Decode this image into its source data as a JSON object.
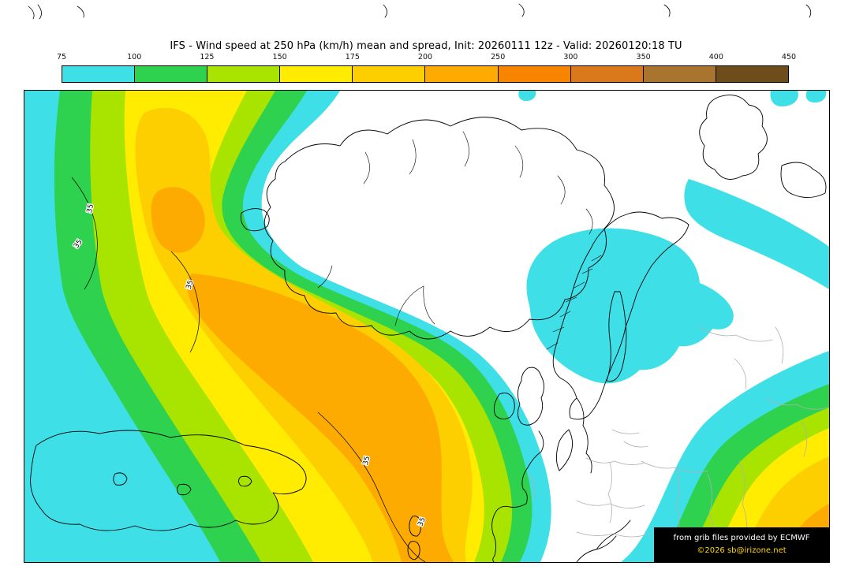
{
  "header": {
    "title": "IFS - Wind speed at 250 hPa (km/h) mean and spread, Init: 20260111 12z - Valid: 20260120:18 TU"
  },
  "colorbar": {
    "tick_labels": [
      "75",
      "100",
      "125",
      "150",
      "175",
      "200",
      "250",
      "300",
      "350",
      "400",
      "450"
    ],
    "segment_colors": [
      "#3fdfe8",
      "#2ed24e",
      "#a8e400",
      "#ffec00",
      "#fdcf00",
      "#fdab00",
      "#f88400",
      "#d9791c",
      "#a8742e",
      "#6f4d1b"
    ]
  },
  "map": {
    "contour_label": "35",
    "attribution": {
      "line1": "from grib files provided by ECMWF",
      "line2": "©2026 sb@irizone.net"
    }
  },
  "colors": {
    "attribution_bg": "#000000",
    "attribution_line1": "#ffffff",
    "attribution_line2": "#ffd700",
    "coastline": "#000000",
    "border_gray": "#b0b0b0"
  },
  "chart_data": {
    "type": "heatmap",
    "title": "IFS - Wind speed at 250 hPa (km/h) mean and spread, Init: 20260111 12z - Valid: 20260120:18 TU",
    "parameter": "Wind speed at 250 hPa",
    "unit": "km/h",
    "model": "IFS",
    "init": "20260111 12z",
    "valid": "20260120:18 TU",
    "levels": [
      75,
      100,
      125,
      150,
      175,
      200,
      250,
      300,
      350,
      400,
      450
    ],
    "spread_contour_value": 35,
    "legend_position": "top"
  }
}
